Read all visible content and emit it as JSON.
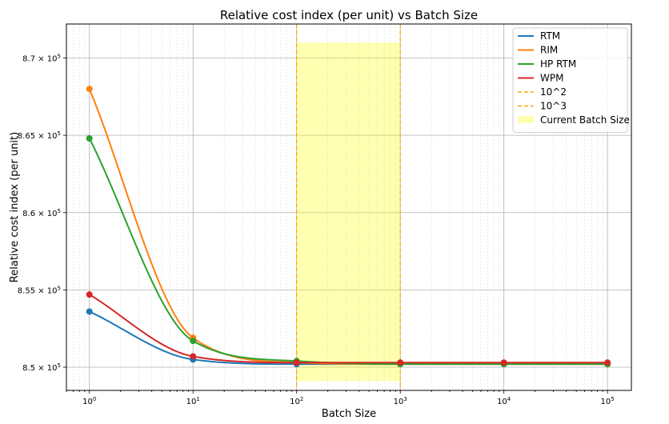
{
  "chart_data": {
    "type": "line",
    "title": "Relative cost index (per unit) vs Batch Size",
    "xlabel": "Batch Size",
    "ylabel": "Relative cost index (per unit)",
    "x_scale": "log",
    "xlim": [
      0.6,
      170000
    ],
    "ylim": [
      848500,
      872200
    ],
    "grid": true,
    "legend_position": "top-right",
    "x_ticks": [
      {
        "value": 1,
        "base": "10",
        "exp": "0"
      },
      {
        "value": 10,
        "base": "10",
        "exp": "1"
      },
      {
        "value": 100,
        "base": "10",
        "exp": "2"
      },
      {
        "value": 1000,
        "base": "10",
        "exp": "3"
      },
      {
        "value": 10000,
        "base": "10",
        "exp": "4"
      },
      {
        "value": 100000,
        "base": "10",
        "exp": "5"
      }
    ],
    "y_ticks": [
      {
        "value": 850000,
        "mant": "8.5",
        "base": " × 10",
        "exp": "5"
      },
      {
        "value": 855000,
        "mant": "8.55",
        "base": " × 10",
        "exp": "5"
      },
      {
        "value": 860000,
        "mant": "8.6",
        "base": " × 10",
        "exp": "5"
      },
      {
        "value": 865000,
        "mant": "8.65",
        "base": " × 10",
        "exp": "5"
      },
      {
        "value": 870000,
        "mant": "8.7",
        "base": " × 10",
        "exp": "5"
      }
    ],
    "x": [
      1,
      10,
      100,
      1000,
      10000,
      100000
    ],
    "series": [
      {
        "name": "RTM",
        "color": "#1f77b4",
        "values": [
          853600,
          850500,
          850200,
          850200,
          850200,
          850200
        ]
      },
      {
        "name": "RIM",
        "color": "#ff7f0e",
        "values": [
          868000,
          851900,
          850300,
          850200,
          850200,
          850200
        ]
      },
      {
        "name": "HP RTM",
        "color": "#2ca02c",
        "values": [
          864800,
          851700,
          850400,
          850200,
          850200,
          850200
        ]
      },
      {
        "name": "WPM",
        "color": "#d62728",
        "values": [
          854700,
          850700,
          850300,
          850300,
          850300,
          850300
        ]
      }
    ],
    "vlines": [
      {
        "name": "10^2",
        "x": 100,
        "color": "#ffa500"
      },
      {
        "name": "10^3",
        "x": 1000,
        "color": "#ffa500"
      }
    ],
    "span": {
      "name": "Current Batch Size",
      "x0": 100,
      "x1": 1000,
      "y0": 849100,
      "y1": 871000,
      "color": "#ffff00"
    }
  }
}
